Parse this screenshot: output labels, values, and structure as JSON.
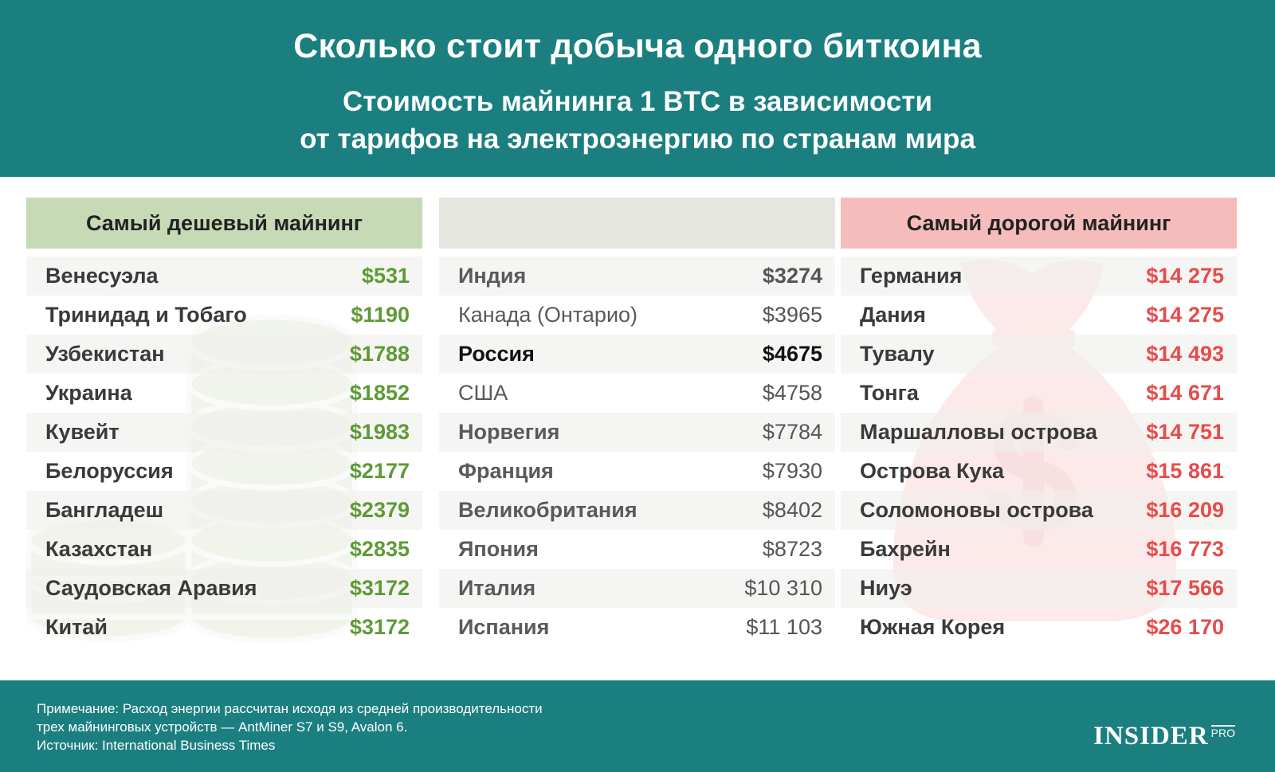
{
  "header": {
    "title": "Сколько стоит добыча одного биткоина",
    "subtitle_line1": "Стоимость майнинга 1 BTC в зависимости",
    "subtitle_line2": "от тарифов на электроэнергию по странам мира"
  },
  "columns": {
    "cheap": {
      "heading": "Самый дешевый майнинг",
      "rows": [
        {
          "country": "Венесуэла",
          "value": "$531"
        },
        {
          "country": "Тринидад и Тобаго",
          "value": "$1190"
        },
        {
          "country": "Узбекистан",
          "value": "$1788"
        },
        {
          "country": "Украина",
          "value": "$1852"
        },
        {
          "country": "Кувейт",
          "value": "$1983"
        },
        {
          "country": "Белоруссия",
          "value": "$2177"
        },
        {
          "country": "Бангладеш",
          "value": "$2379"
        },
        {
          "country": "Казахстан",
          "value": "$2835"
        },
        {
          "country": "Саудовская Аравия",
          "value": "$3172"
        },
        {
          "country": "Китай",
          "value": "$3172"
        }
      ]
    },
    "middle": {
      "heading": "",
      "rows": [
        {
          "country": "Индия",
          "value": "$3274"
        },
        {
          "country": "Канада (Онтарио)",
          "value": "$3965"
        },
        {
          "country": "Россия",
          "value": "$4675"
        },
        {
          "country": "США",
          "value": "$4758"
        },
        {
          "country": "Норвегия",
          "value": "$7784"
        },
        {
          "country": "Франция",
          "value": "$7930"
        },
        {
          "country": "Великобритания",
          "value": "$8402"
        },
        {
          "country": "Япония",
          "value": "$8723"
        },
        {
          "country": "Италия",
          "value": "$10 310"
        },
        {
          "country": "Испания",
          "value": "$11 103"
        }
      ]
    },
    "expensive": {
      "heading": "Самый дорогой майнинг",
      "rows": [
        {
          "country": "Германия",
          "value": "$14 275"
        },
        {
          "country": "Дания",
          "value": "$14 275"
        },
        {
          "country": "Тувалу",
          "value": "$14 493"
        },
        {
          "country": "Тонга",
          "value": "$14 671"
        },
        {
          "country": "Маршалловы острова",
          "value": "$14 751"
        },
        {
          "country": "Острова Кука",
          "value": "$15 861"
        },
        {
          "country": "Соломоновы острова",
          "value": "$16 209"
        },
        {
          "country": "Бахрейн",
          "value": "$16 773"
        },
        {
          "country": "Ниуэ",
          "value": "$17 566"
        },
        {
          "country": "Южная Корея",
          "value": "$26 170"
        }
      ]
    }
  },
  "footer": {
    "note_line1": "Примечание: Расход энергии рассчитан исходя из средней производительности",
    "note_line2": "трех майнинговых устройств — AntMiner S7 и S9, Avalon 6.",
    "source": "Источник: International Business Times",
    "logo_main": "INSIDER",
    "logo_pro": "PRO"
  },
  "colors": {
    "teal": "#1b7f80",
    "green_value": "#5e9a35",
    "red_value": "#e84b4b",
    "green_header": "#c7dab6",
    "pink_header": "#f6bcbc"
  },
  "icons": {
    "left_background": "coin-stack-icon",
    "right_background": "money-bag-icon"
  }
}
